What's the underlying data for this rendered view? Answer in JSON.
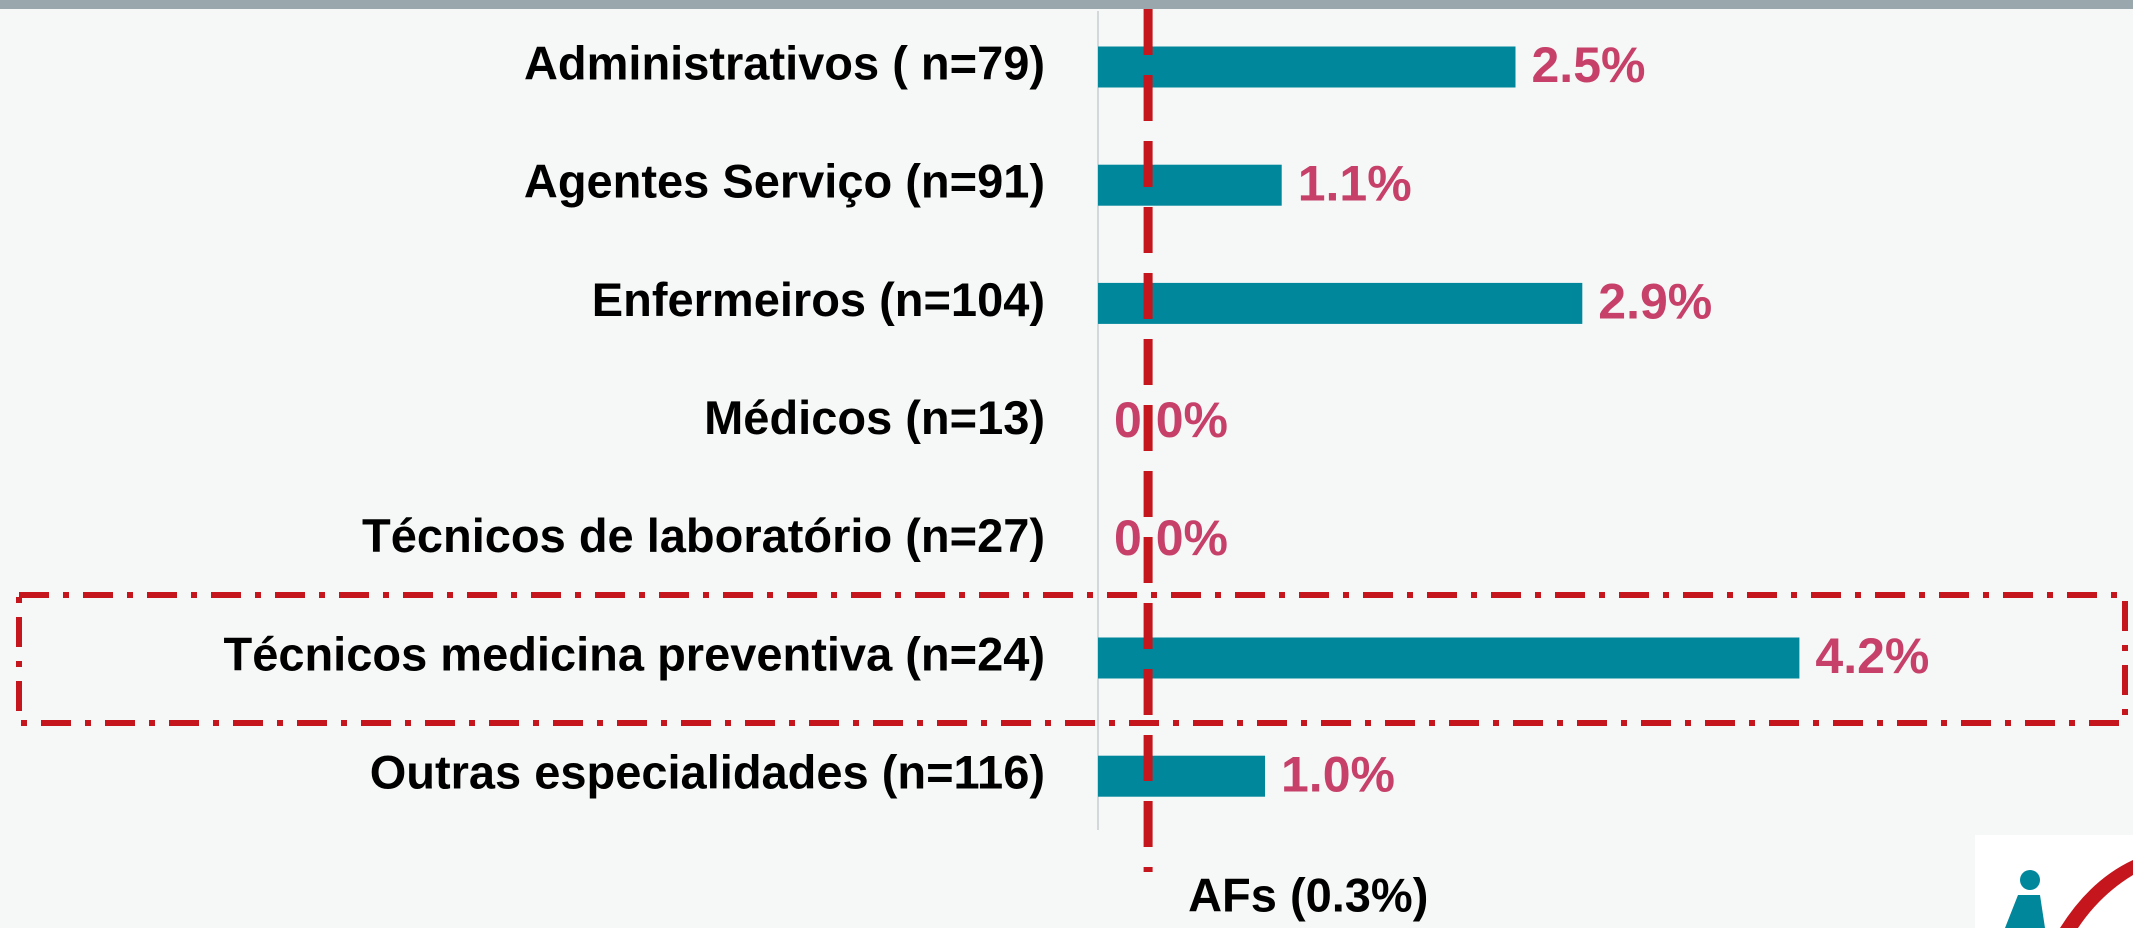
{
  "chart_data": {
    "type": "hbar",
    "categories": [
      "Administrativos ( n=79)",
      "Agentes Serviço (n=91)",
      "Enfermeiros (n=104)",
      "Médicos (n=13)",
      "Técnicos de laboratório (n=27)",
      "Técnicos medicina preventiva (n=24)",
      "Outras especialidades (n=116)"
    ],
    "values": [
      2.5,
      1.1,
      2.9,
      0.0,
      0.0,
      4.2,
      1.0
    ],
    "value_labels": [
      "2.5%",
      "1.1%",
      "2.9%",
      "0.0%",
      "0.0%",
      "4.2%",
      "1.0%"
    ],
    "color": "#00879b",
    "label_color": "#c6406a",
    "xlim": [
      0,
      6
    ],
    "reference_line": {
      "value": 0.3,
      "label": "AFs (0.3%)",
      "color": "#c4161c"
    }
  }
}
